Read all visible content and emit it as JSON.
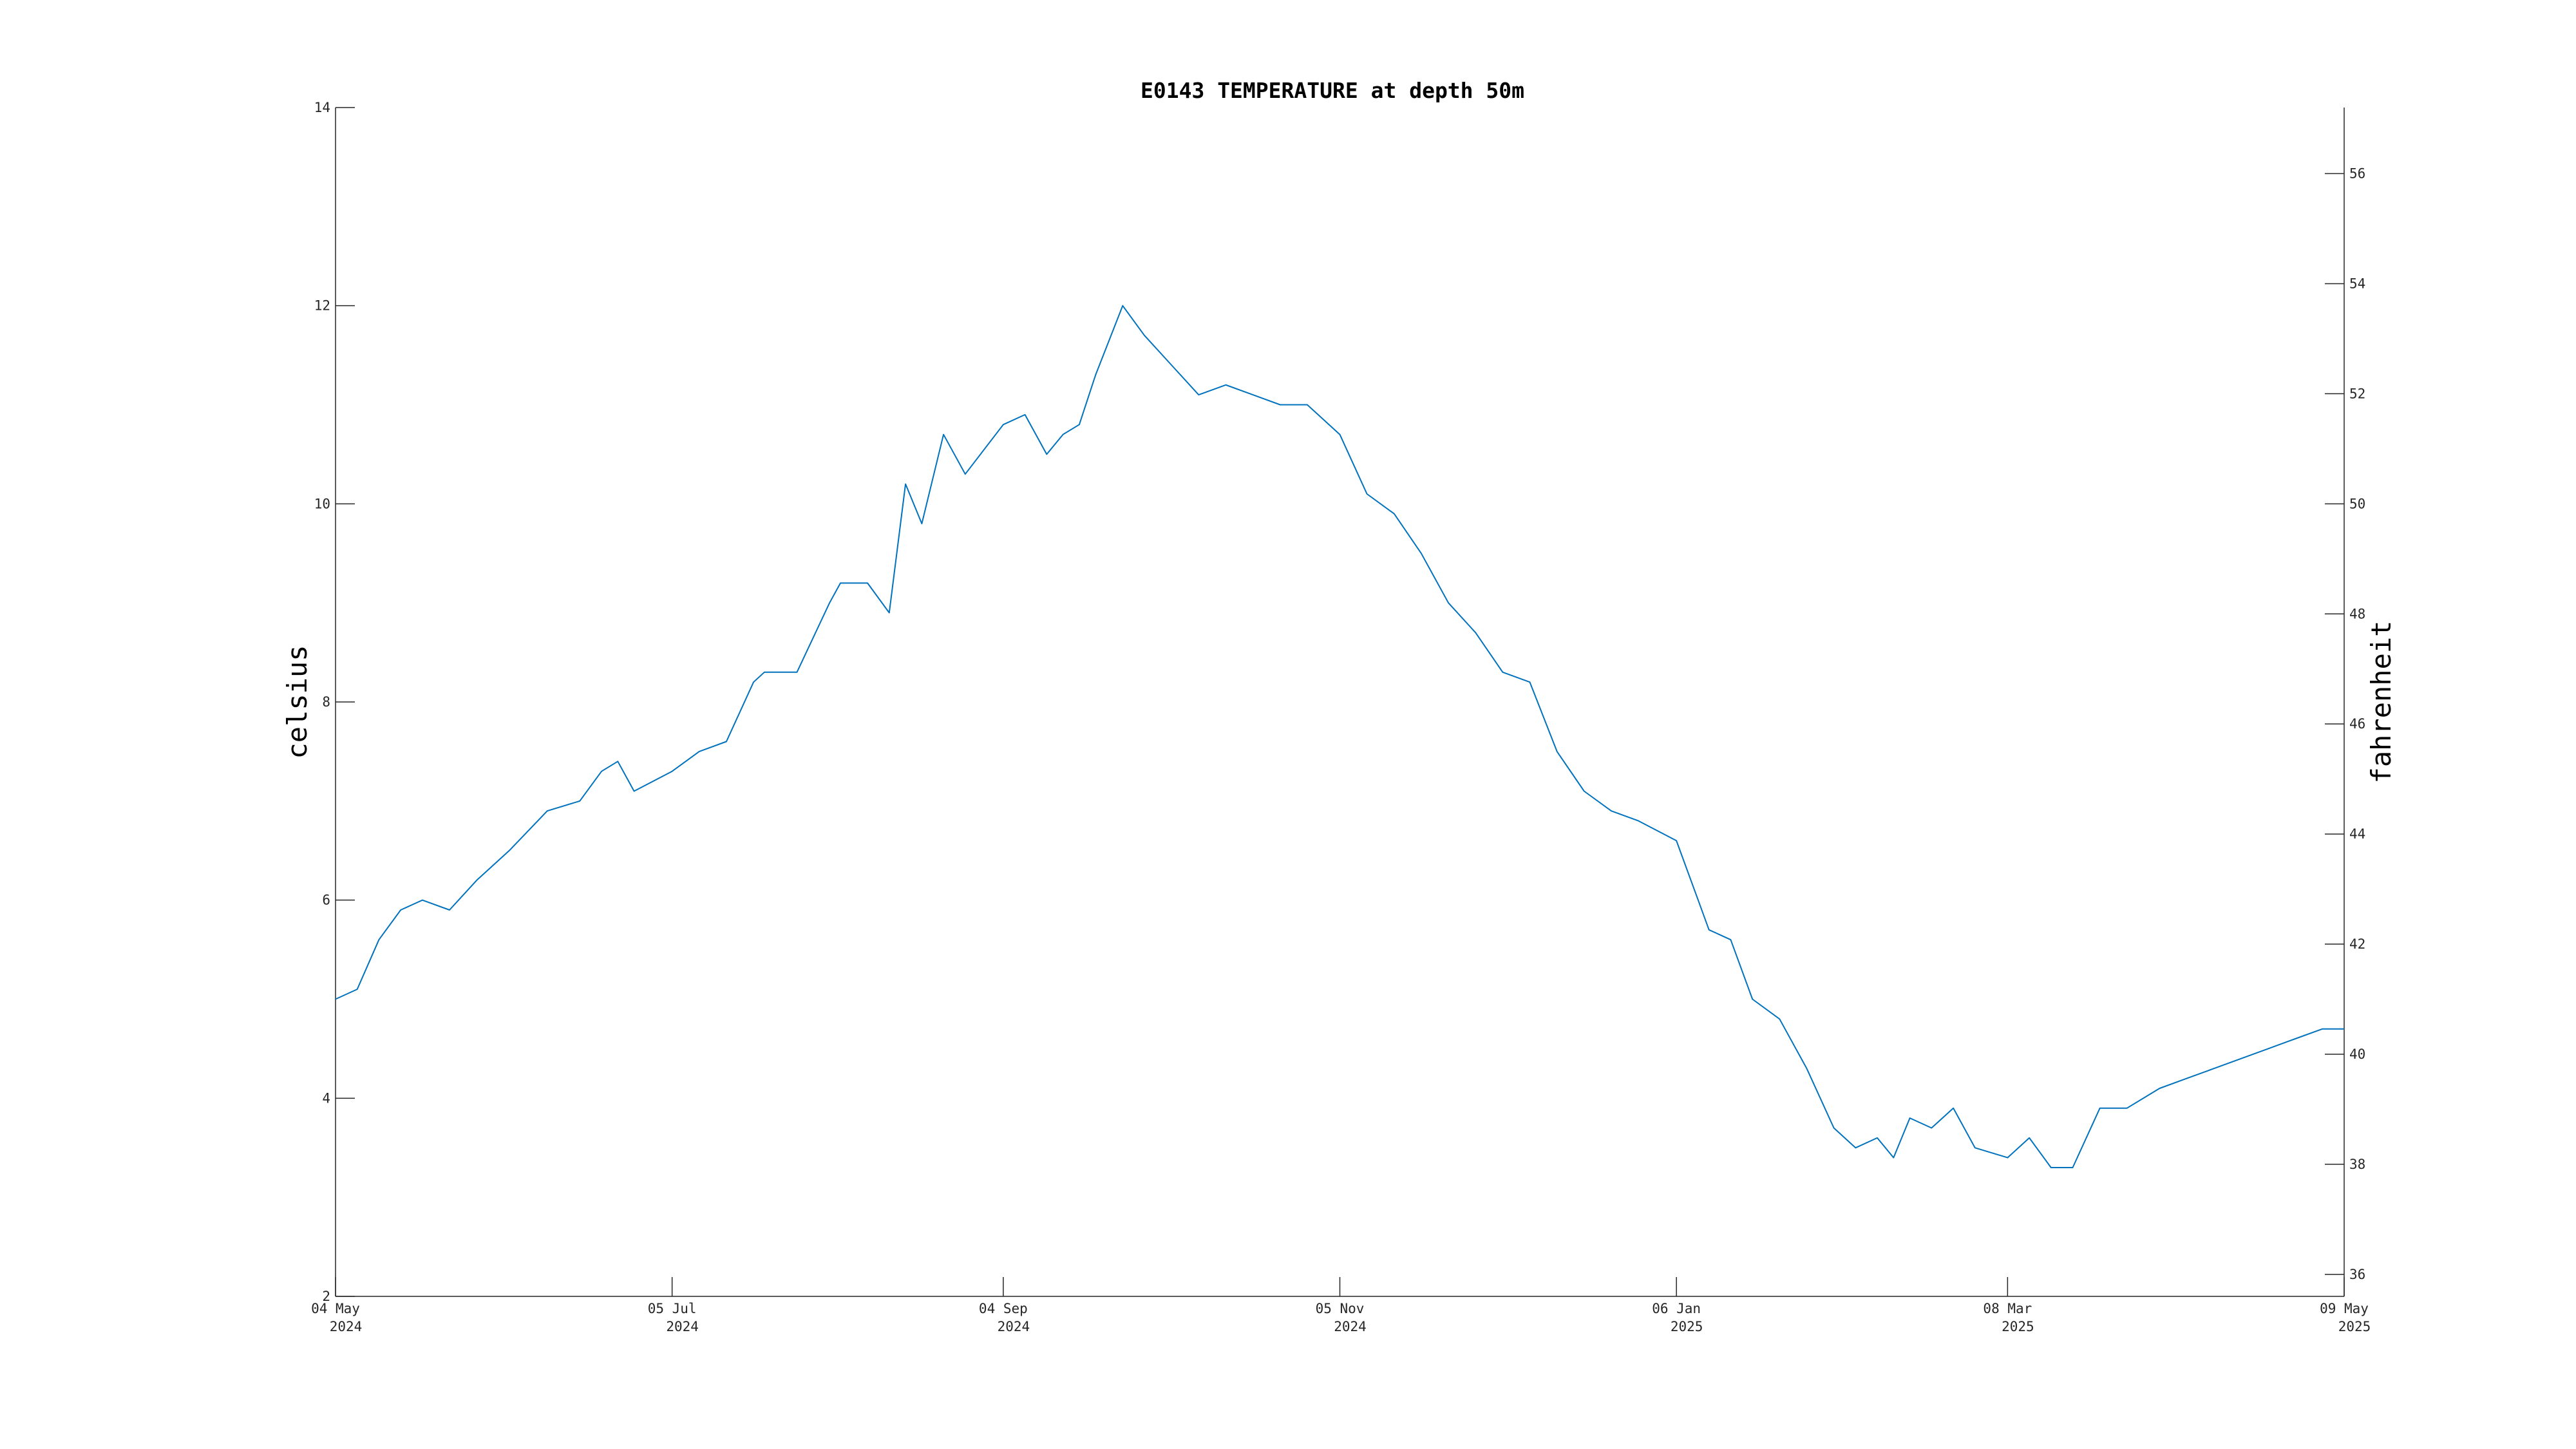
{
  "chart_data": {
    "type": "line",
    "title": "E0143 TEMPERATURE at depth 50m",
    "ylabel": "celsius",
    "y2label": "fahrenheit",
    "xlabel": "",
    "xlim": [
      "2024-05-04",
      "2025-05-09"
    ],
    "ylim": [
      2,
      14
    ],
    "y2lim": [
      35.6,
      57.2
    ],
    "x_ticks": [
      {
        "date": "2024-05-04",
        "line1": "04 May",
        "line2": "2024"
      },
      {
        "date": "2024-07-05",
        "line1": "05 Jul",
        "line2": "2024"
      },
      {
        "date": "2024-09-04",
        "line1": "04 Sep",
        "line2": "2024"
      },
      {
        "date": "2024-11-05",
        "line1": "05 Nov",
        "line2": "2024"
      },
      {
        "date": "2025-01-06",
        "line1": "06 Jan",
        "line2": "2025"
      },
      {
        "date": "2025-03-08",
        "line1": "08 Mar",
        "line2": "2025"
      },
      {
        "date": "2025-05-09",
        "line1": "09 May",
        "line2": "2025"
      }
    ],
    "y_ticks": [
      "2",
      "4",
      "6",
      "8",
      "10",
      "12",
      "14"
    ],
    "y2_ticks": [
      "36",
      "38",
      "40",
      "42",
      "44",
      "46",
      "48",
      "50",
      "52",
      "54",
      "56"
    ],
    "grid": false,
    "legend": "none",
    "line_color": "#0072bd",
    "series": [
      {
        "x": [
          "2024-05-04",
          "2024-05-08",
          "2024-05-12",
          "2024-05-16",
          "2024-05-20",
          "2024-05-25",
          "2024-05-30",
          "2024-06-05",
          "2024-06-12",
          "2024-06-18",
          "2024-06-22",
          "2024-06-25",
          "2024-06-28",
          "2024-07-05",
          "2024-07-10",
          "2024-07-15",
          "2024-07-20",
          "2024-07-22",
          "2024-07-28",
          "2024-08-03",
          "2024-08-05",
          "2024-08-10",
          "2024-08-14",
          "2024-08-17",
          "2024-08-20",
          "2024-08-24",
          "2024-08-28",
          "2024-09-04",
          "2024-09-08",
          "2024-09-12",
          "2024-09-15",
          "2024-09-18",
          "2024-09-21",
          "2024-09-26",
          "2024-09-30",
          "2024-10-05",
          "2024-10-10",
          "2024-10-15",
          "2024-10-20",
          "2024-10-25",
          "2024-10-30",
          "2024-11-05",
          "2024-11-10",
          "2024-11-15",
          "2024-11-20",
          "2024-11-25",
          "2024-11-30",
          "2024-12-05",
          "2024-12-10",
          "2024-12-15",
          "2024-12-20",
          "2024-12-25",
          "2024-12-30",
          "2025-01-06",
          "2025-01-10",
          "2025-01-12",
          "2025-01-16",
          "2025-01-20",
          "2025-01-25",
          "2025-01-30",
          "2025-02-04",
          "2025-02-08",
          "2025-02-12",
          "2025-02-15",
          "2025-02-18",
          "2025-02-22",
          "2025-02-26",
          "2025-03-02",
          "2025-03-08",
          "2025-03-12",
          "2025-03-16",
          "2025-03-20",
          "2025-03-25",
          "2025-03-30",
          "2025-04-05",
          "2025-04-10",
          "2025-04-15",
          "2025-04-20",
          "2025-04-25",
          "2025-04-30",
          "2025-05-05",
          "2025-05-09"
        ],
        "y": [
          5.0,
          5.1,
          5.6,
          5.9,
          6.0,
          5.9,
          6.2,
          6.5,
          6.9,
          7.0,
          7.3,
          7.4,
          7.1,
          7.3,
          7.5,
          7.6,
          8.2,
          8.3,
          8.3,
          9.0,
          9.2,
          9.2,
          8.9,
          10.2,
          9.8,
          10.7,
          10.3,
          10.8,
          10.9,
          10.5,
          10.7,
          10.8,
          11.3,
          12.0,
          11.7,
          11.4,
          11.1,
          11.2,
          11.1,
          11.0,
          11.0,
          10.7,
          10.1,
          9.9,
          9.5,
          9.0,
          8.7,
          8.3,
          8.2,
          7.5,
          7.1,
          6.9,
          6.8,
          6.6,
          6.0,
          5.7,
          5.6,
          5.0,
          4.8,
          4.3,
          3.7,
          3.5,
          3.6,
          3.4,
          3.8,
          3.7,
          3.9,
          3.5,
          3.4,
          3.6,
          3.3,
          3.3,
          3.9,
          3.9,
          4.1,
          4.2,
          4.3,
          4.4,
          4.5,
          4.6,
          4.7,
          4.7
        ]
      }
    ]
  }
}
